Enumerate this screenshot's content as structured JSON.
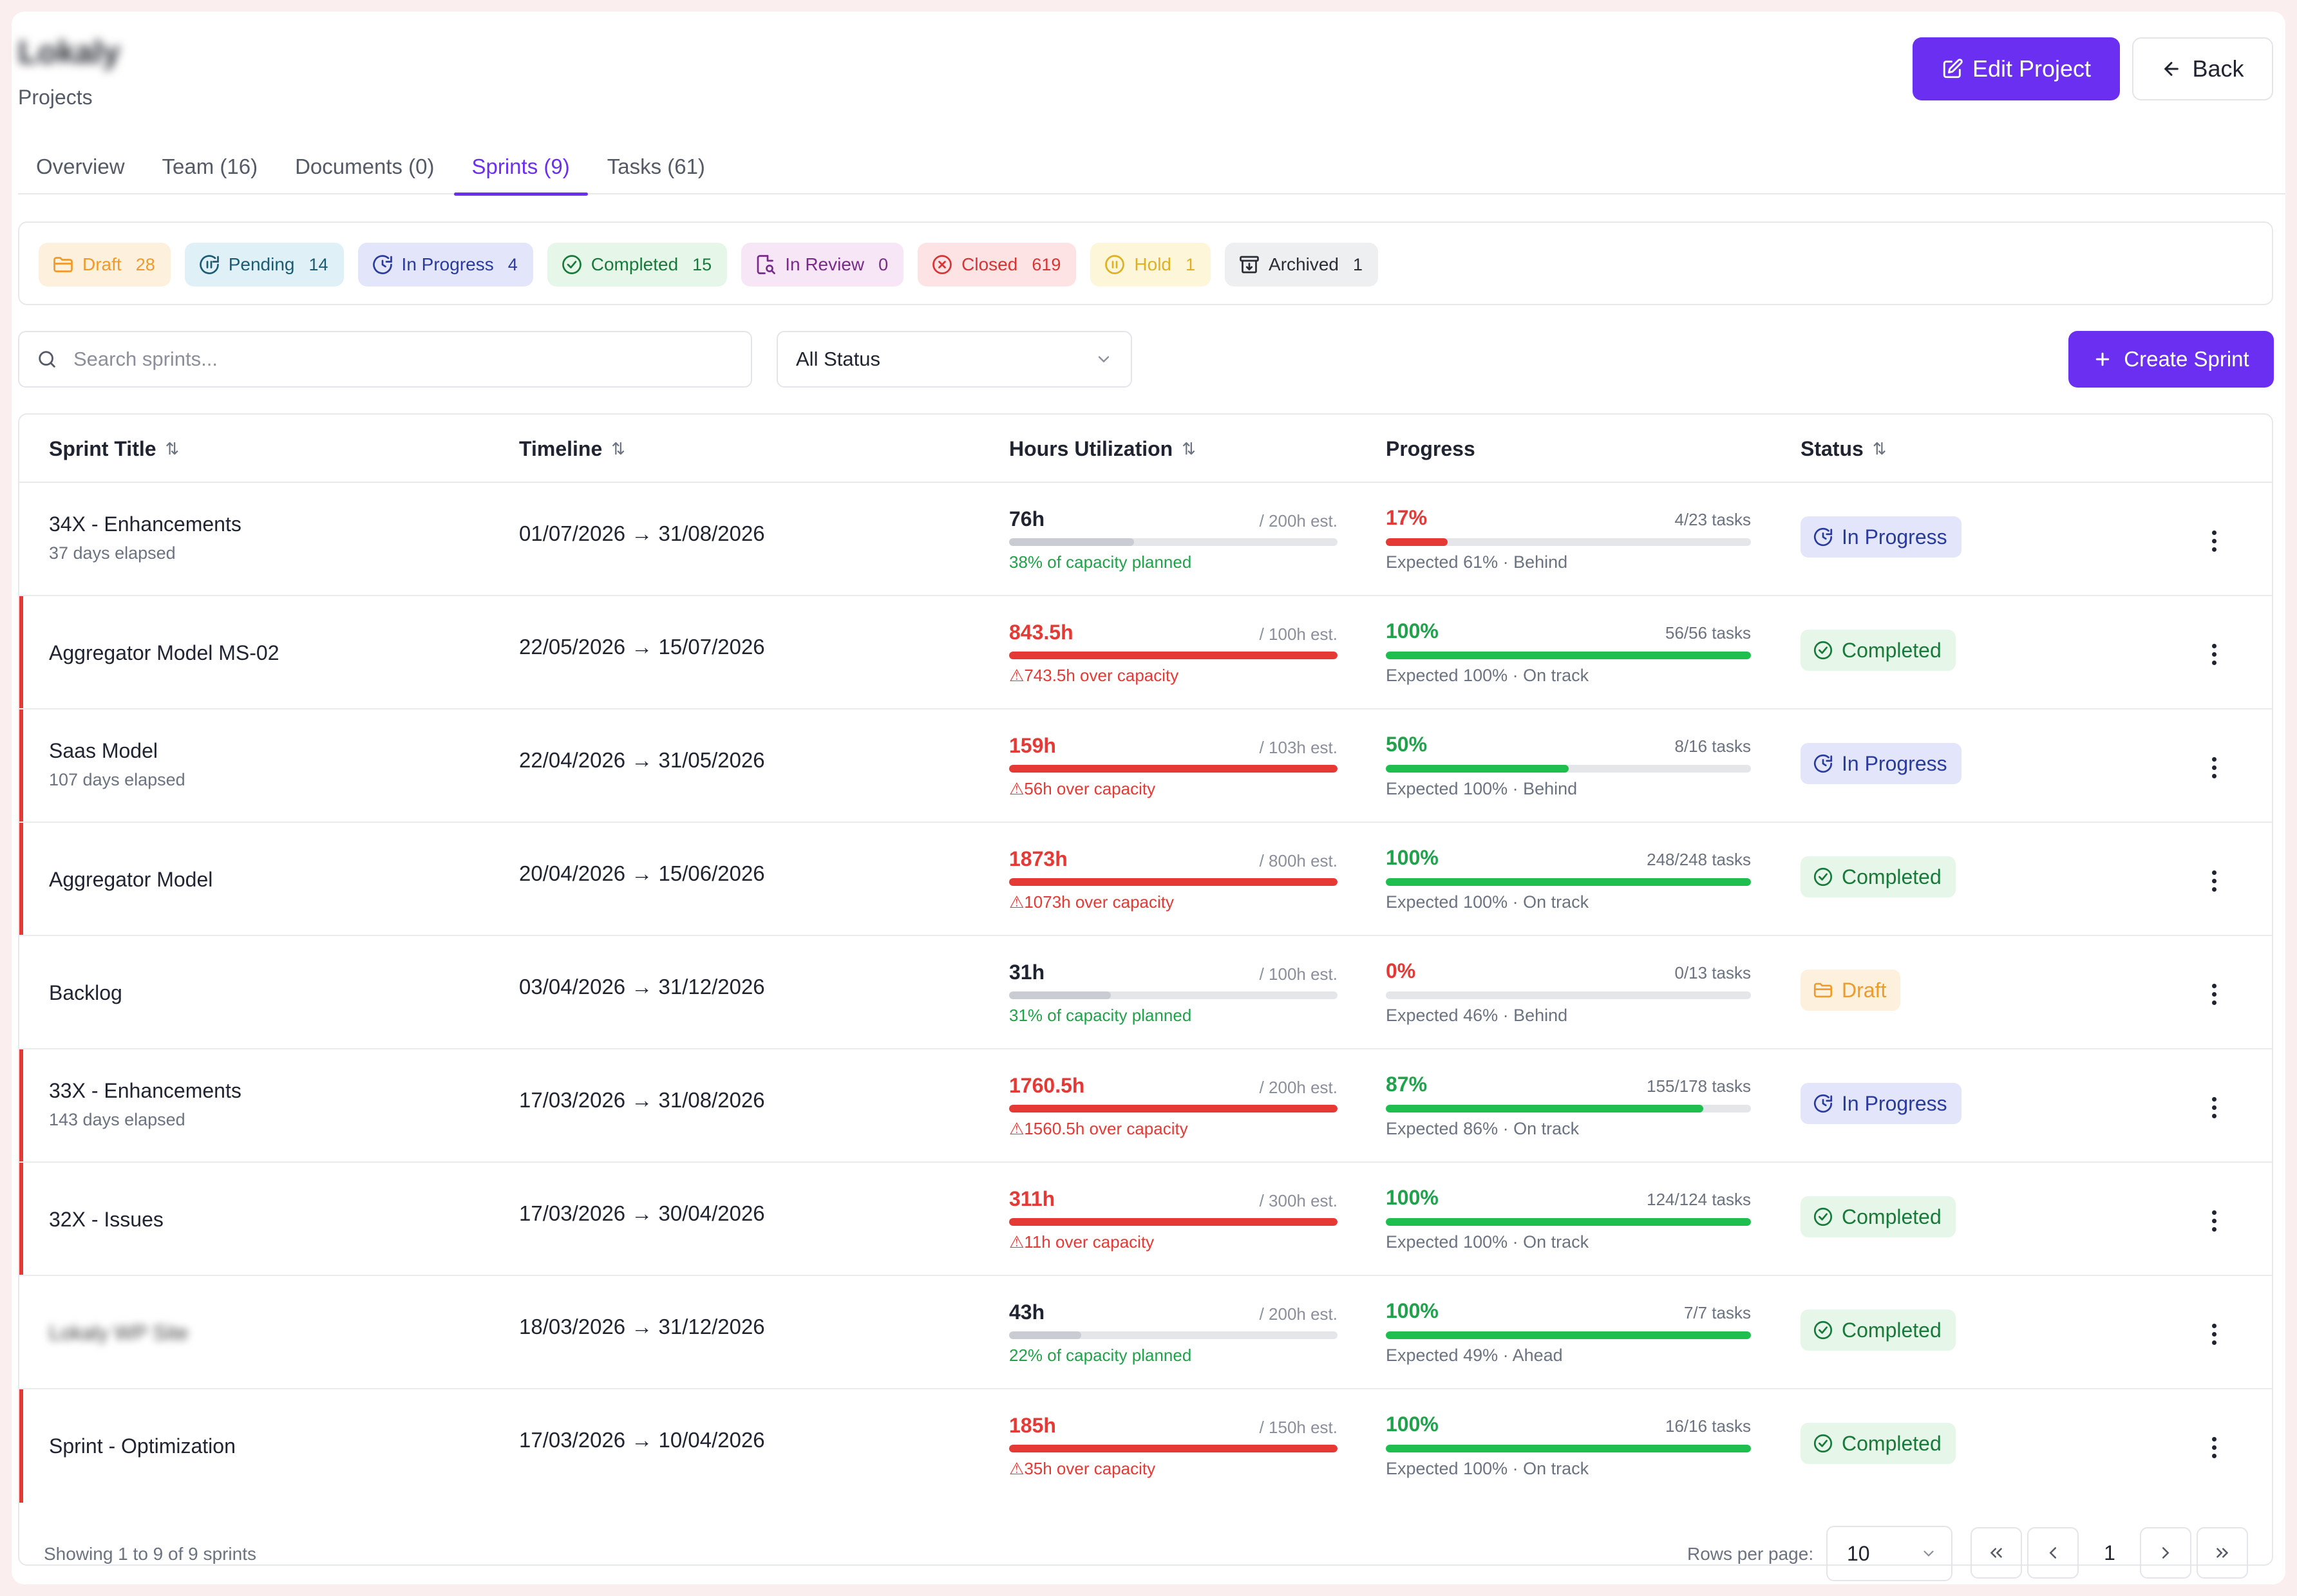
{
  "header": {
    "project_name": "Lokaly",
    "breadcrumb": "Projects",
    "edit_label": "Edit Project",
    "back_label": "Back"
  },
  "tabs": [
    {
      "label": "Overview"
    },
    {
      "label": "Team (16)"
    },
    {
      "label": "Documents (0)"
    },
    {
      "label": "Sprints (9)",
      "active": true
    },
    {
      "label": "Tasks (61)"
    }
  ],
  "status_chips": [
    {
      "label": "Draft",
      "count": "28"
    },
    {
      "label": "Pending",
      "count": "14"
    },
    {
      "label": "In Progress",
      "count": "4"
    },
    {
      "label": "Completed",
      "count": "15"
    },
    {
      "label": "In Review",
      "count": "0"
    },
    {
      "label": "Closed",
      "count": "619"
    },
    {
      "label": "Hold",
      "count": "1"
    },
    {
      "label": "Archived",
      "count": "1"
    }
  ],
  "toolbar": {
    "search_placeholder": "Search sprints...",
    "status_filter": "All Status",
    "create_label": "Create Sprint"
  },
  "table": {
    "headers": {
      "title": "Sprint Title",
      "timeline": "Timeline",
      "hours": "Hours Utilization",
      "progress": "Progress",
      "status": "Status"
    },
    "rows": [
      {
        "title": "34X - Enhancements",
        "subtitle": "37 days elapsed",
        "timeline": "01/07/2026 → 31/08/2026",
        "hours": "76h",
        "est": "/ 200h est.",
        "hours_note": "38% of capacity planned",
        "hours_pct": 38,
        "over": false,
        "progress": "17%",
        "progress_pct": 17,
        "tasks": "4/23 tasks",
        "expected": "Expected 61% · Behind",
        "status": "In Progress"
      },
      {
        "title": "Aggregator Model MS-02",
        "subtitle": "",
        "timeline": "22/05/2026 → 15/07/2026",
        "hours": "843.5h",
        "est": "/ 100h est.",
        "hours_note": "743.5h over capacity",
        "hours_pct": 100,
        "over": true,
        "progress": "100%",
        "progress_pct": 100,
        "tasks": "56/56 tasks",
        "expected": "Expected 100% · On track",
        "status": "Completed"
      },
      {
        "title": "Saas Model",
        "subtitle": "107 days elapsed",
        "timeline": "22/04/2026 → 31/05/2026",
        "hours": "159h",
        "est": "/ 103h est.",
        "hours_note": "56h over capacity",
        "hours_pct": 100,
        "over": true,
        "progress": "50%",
        "progress_pct": 50,
        "tasks": "8/16 tasks",
        "expected": "Expected 100% · Behind",
        "status": "In Progress"
      },
      {
        "title": "Aggregator Model",
        "subtitle": "",
        "timeline": "20/04/2026 → 15/06/2026",
        "hours": "1873h",
        "est": "/ 800h est.",
        "hours_note": "1073h over capacity",
        "hours_pct": 100,
        "over": true,
        "progress": "100%",
        "progress_pct": 100,
        "tasks": "248/248 tasks",
        "expected": "Expected 100% · On track",
        "status": "Completed"
      },
      {
        "title": "Backlog",
        "subtitle": "",
        "timeline": "03/04/2026 → 31/12/2026",
        "hours": "31h",
        "est": "/ 100h est.",
        "hours_note": "31% of capacity planned",
        "hours_pct": 31,
        "over": false,
        "progress": "0%",
        "progress_pct": 0,
        "tasks": "0/13 tasks",
        "expected": "Expected 46% · Behind",
        "status": "Draft"
      },
      {
        "title": "33X - Enhancements",
        "subtitle": "143 days elapsed",
        "timeline": "17/03/2026 → 31/08/2026",
        "hours": "1760.5h",
        "est": "/ 200h est.",
        "hours_note": "1560.5h over capacity",
        "hours_pct": 100,
        "over": true,
        "progress": "87%",
        "progress_pct": 87,
        "tasks": "155/178 tasks",
        "expected": "Expected 86% · On track",
        "status": "In Progress"
      },
      {
        "title": "32X - Issues",
        "subtitle": "",
        "timeline": "17/03/2026 → 30/04/2026",
        "hours": "311h",
        "est": "/ 300h est.",
        "hours_note": "11h over capacity",
        "hours_pct": 100,
        "over": true,
        "progress": "100%",
        "progress_pct": 100,
        "tasks": "124/124 tasks",
        "expected": "Expected 100% · On track",
        "status": "Completed"
      },
      {
        "title": "Lokaly WP Site",
        "blurred": true,
        "subtitle": "",
        "timeline": "18/03/2026 → 31/12/2026",
        "hours": "43h",
        "est": "/ 200h est.",
        "hours_note": "22% of capacity planned",
        "hours_pct": 22,
        "over": false,
        "progress": "100%",
        "progress_pct": 100,
        "tasks": "7/7 tasks",
        "expected": "Expected 49% · Ahead",
        "status": "Completed"
      },
      {
        "title": "Sprint - Optimization",
        "subtitle": "",
        "timeline": "17/03/2026 → 10/04/2026",
        "hours": "185h",
        "est": "/ 150h est.",
        "hours_note": "35h over capacity",
        "hours_pct": 100,
        "over": true,
        "progress": "100%",
        "progress_pct": 100,
        "tasks": "16/16 tasks",
        "expected": "Expected 100% · On track",
        "status": "Completed"
      }
    ]
  },
  "footer": {
    "showing": "Showing 1 to 9 of 9 sprints",
    "rows_per_page_label": "Rows per page:",
    "rows_per_page": "10",
    "current_page": "1"
  },
  "colors": {
    "accent": "#6b2ff2",
    "danger": "#e53935",
    "success": "#1fbf4f",
    "neutral_bar": "#c9ccd2"
  }
}
